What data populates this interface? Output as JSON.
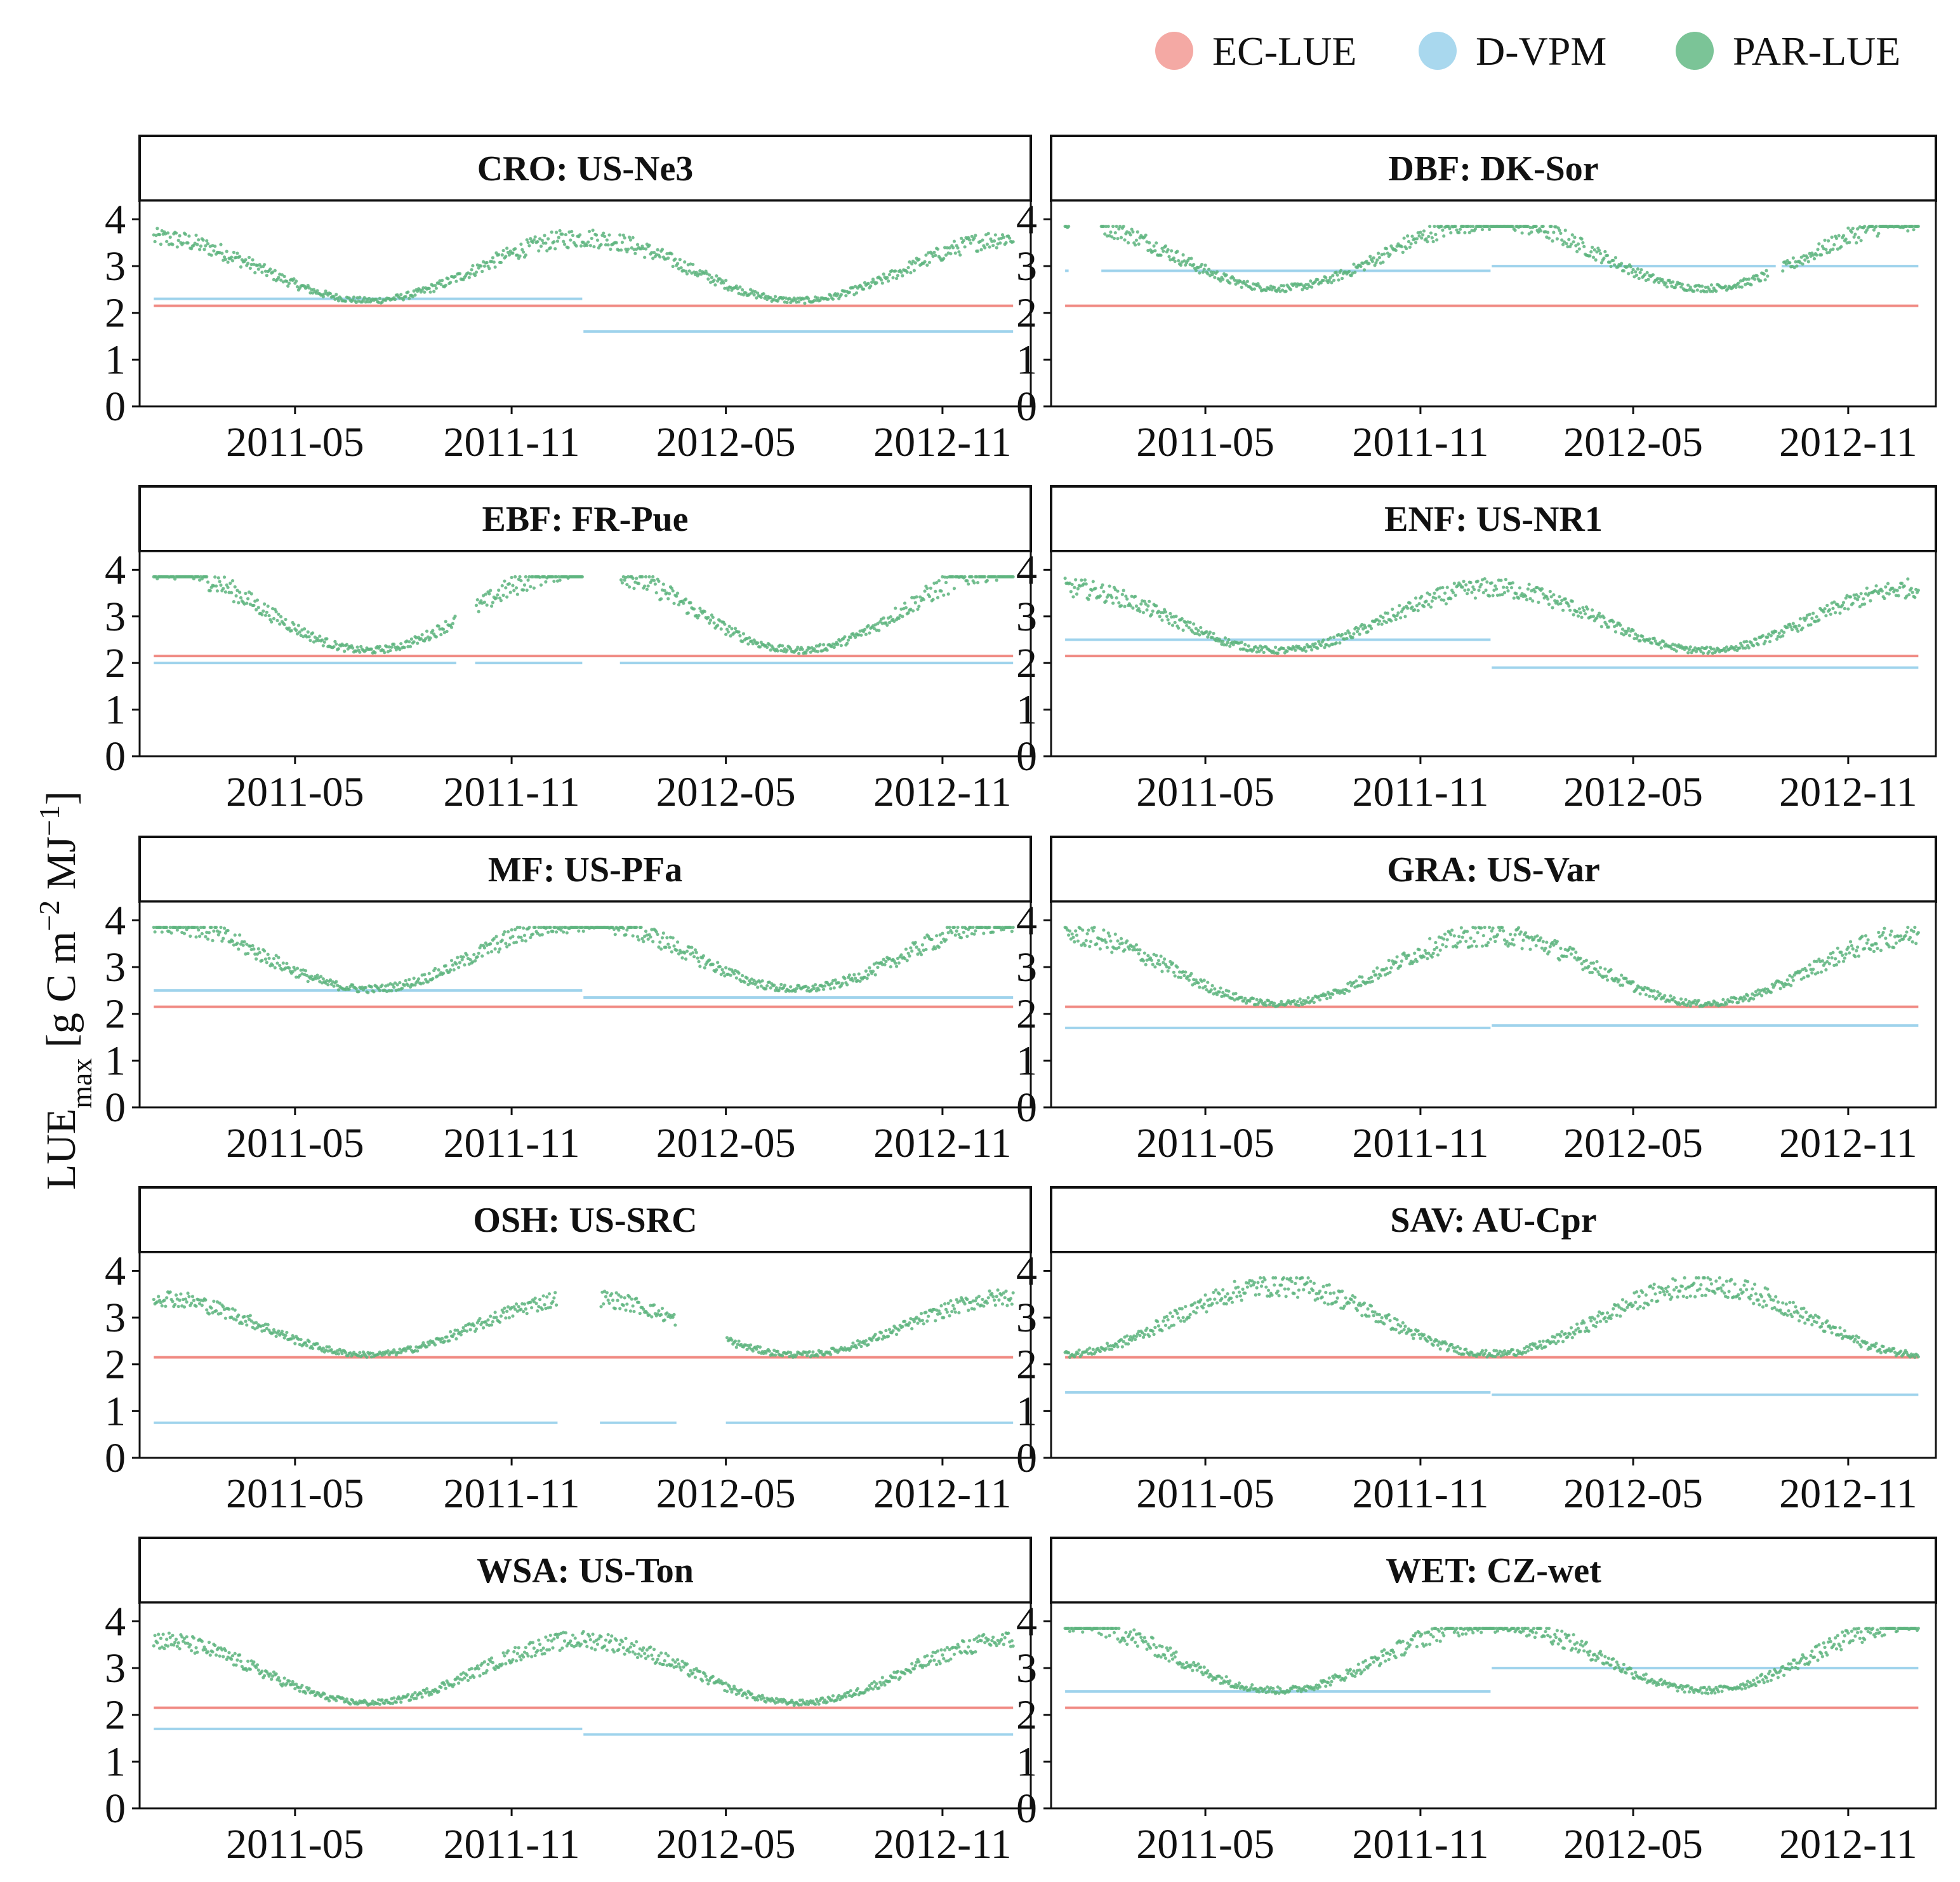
{
  "chart_data": {
    "type": "scatter",
    "ylabel": {
      "main": "LUE",
      "sub": "max",
      "rest": " [g C m",
      "sup1": "−2",
      "mid": " MJ",
      "sup2": "−1",
      "end": "]"
    },
    "legend": [
      {
        "name": "EC-LUE",
        "color": "#F4A9A4"
      },
      {
        "name": "D-VPM",
        "color": "#A9D8EE"
      },
      {
        "name": "PAR-LUE",
        "color": "#7BC497"
      }
    ],
    "x_ticks": [
      "2011-05",
      "2011-11",
      "2012-05",
      "2012-11"
    ],
    "y_ticks": [
      "0",
      "1",
      "2",
      "3",
      "4"
    ],
    "ylim": [
      0,
      4.4
    ],
    "xlim": [
      "2010-12-20",
      "2013-01-15"
    ],
    "colors": {
      "ec": "#F08B84",
      "dvpm": "#9FD3EC",
      "par": "#5DB47E"
    },
    "panels": [
      {
        "title": "CRO: US-Ne3",
        "ec": 2.15,
        "dvpm": [
          [
            [
              "2011-01-01",
              "2011-12-31"
            ],
            2.3
          ],
          [
            [
              "2012-01-01",
              "2012-12-31"
            ],
            1.6
          ]
        ],
        "par": {
          "base": 2.8,
          "amp": 0.6,
          "phase": 1.57,
          "dip": 2.15,
          "gaps": [],
          "scatter": 0.35
        }
      },
      {
        "title": "DBF: DK-Sor",
        "ec": 2.15,
        "dvpm": [
          [
            [
              "2011-01-01",
              "2011-01-04"
            ],
            2.9
          ],
          [
            [
              "2011-02-01",
              "2011-12-31"
            ],
            2.9
          ],
          [
            [
              "2012-01-01",
              "2012-08-31"
            ],
            3.0
          ],
          [
            [
              "2012-09-05",
              "2012-12-31"
            ],
            3.0
          ]
        ],
        "par": {
          "base": 3.1,
          "amp": 0.65,
          "phase": 1.57,
          "dip": 2.3,
          "gaps": [
            [
              "2011-01-05",
              "2011-01-31"
            ],
            [
              "2012-08-25",
              "2012-09-05"
            ]
          ],
          "scatter": 0.35
        }
      },
      {
        "title": "EBF: FR-Pue",
        "ec": 2.15,
        "dvpm": [
          [
            [
              "2011-01-01",
              "2011-09-15"
            ],
            2.0
          ],
          [
            [
              "2011-10-01",
              "2011-12-31"
            ],
            2.0
          ],
          [
            [
              "2012-02-01",
              "2012-12-31"
            ],
            2.0
          ]
        ],
        "par": {
          "base": 3.0,
          "amp": 0.8,
          "phase": 1.57,
          "dip": 2.15,
          "gaps": [
            [
              "2011-09-15",
              "2011-10-01"
            ],
            [
              "2012-01-01",
              "2012-02-01"
            ]
          ],
          "scatter": 0.4
        }
      },
      {
        "title": "ENF: US-NR1",
        "ec": 2.15,
        "dvpm": [
          [
            [
              "2011-01-01",
              "2011-12-31"
            ],
            2.5
          ],
          [
            [
              "2012-01-01",
              "2012-12-31"
            ],
            1.9
          ]
        ],
        "par": {
          "base": 2.8,
          "amp": 0.6,
          "phase": 1.57,
          "dip": 2.1,
          "gaps": [],
          "scatter": 0.35
        }
      },
      {
        "title": "MF: US-PFa",
        "ec": 2.15,
        "dvpm": [
          [
            [
              "2011-01-01",
              "2011-12-31"
            ],
            2.5
          ],
          [
            [
              "2012-01-01",
              "2012-12-31"
            ],
            2.35
          ]
        ],
        "par": {
          "base": 3.1,
          "amp": 0.65,
          "phase": 1.57,
          "dip": 2.35,
          "gaps": [],
          "scatter": 0.4
        }
      },
      {
        "title": "GRA: US-Var",
        "ec": 2.15,
        "dvpm": [
          [
            [
              "2011-01-01",
              "2011-12-31"
            ],
            1.7
          ],
          [
            [
              "2012-01-01",
              "2012-12-31"
            ],
            1.75
          ]
        ],
        "par": {
          "base": 2.8,
          "amp": 0.65,
          "phase": 1.57,
          "dip": 2.15,
          "gaps": [],
          "scatter": 0.4
        }
      },
      {
        "title": "OSH: US-SRC",
        "ec": 2.15,
        "dvpm": [
          [
            [
              "2011-01-01",
              "2011-12-10"
            ],
            0.75
          ],
          [
            [
              "2012-01-15",
              "2012-03-20"
            ],
            0.75
          ],
          [
            [
              "2012-05-01",
              "2012-12-31"
            ],
            0.75
          ]
        ],
        "par": {
          "base": 2.7,
          "amp": 0.55,
          "phase": 1.57,
          "dip": 2.15,
          "gaps": [
            [
              "2011-12-10",
              "2012-01-15"
            ],
            [
              "2012-03-20",
              "2012-05-01"
            ]
          ],
          "scatter": 0.35
        }
      },
      {
        "title": "SAV: AU-Cpr",
        "ec": 2.15,
        "dvpm": [
          [
            [
              "2011-01-01",
              "2011-12-31"
            ],
            1.4
          ],
          [
            [
              "2012-01-01",
              "2012-12-31"
            ],
            1.35
          ]
        ],
        "par": {
          "base": 2.8,
          "amp": 0.65,
          "phase": -1.57,
          "dip": 2.1,
          "gaps": [],
          "scatter": 0.4
        }
      },
      {
        "title": "WSA: US-Ton",
        "ec": 2.15,
        "dvpm": [
          [
            [
              "2011-01-01",
              "2011-12-31"
            ],
            1.7
          ],
          [
            [
              "2012-01-01",
              "2012-12-31"
            ],
            1.58
          ]
        ],
        "par": {
          "base": 2.8,
          "amp": 0.6,
          "phase": 1.57,
          "dip": 2.2,
          "gaps": [],
          "scatter": 0.35
        }
      },
      {
        "title": "WET: CZ-wet",
        "ec": 2.15,
        "dvpm": [
          [
            [
              "2011-01-01",
              "2011-12-31"
            ],
            2.5
          ],
          [
            [
              "2012-01-01",
              "2012-12-31"
            ],
            3.0
          ]
        ],
        "par": {
          "base": 3.1,
          "amp": 0.65,
          "phase": 1.57,
          "dip": 2.4,
          "gaps": [],
          "scatter": 0.4
        }
      }
    ]
  }
}
